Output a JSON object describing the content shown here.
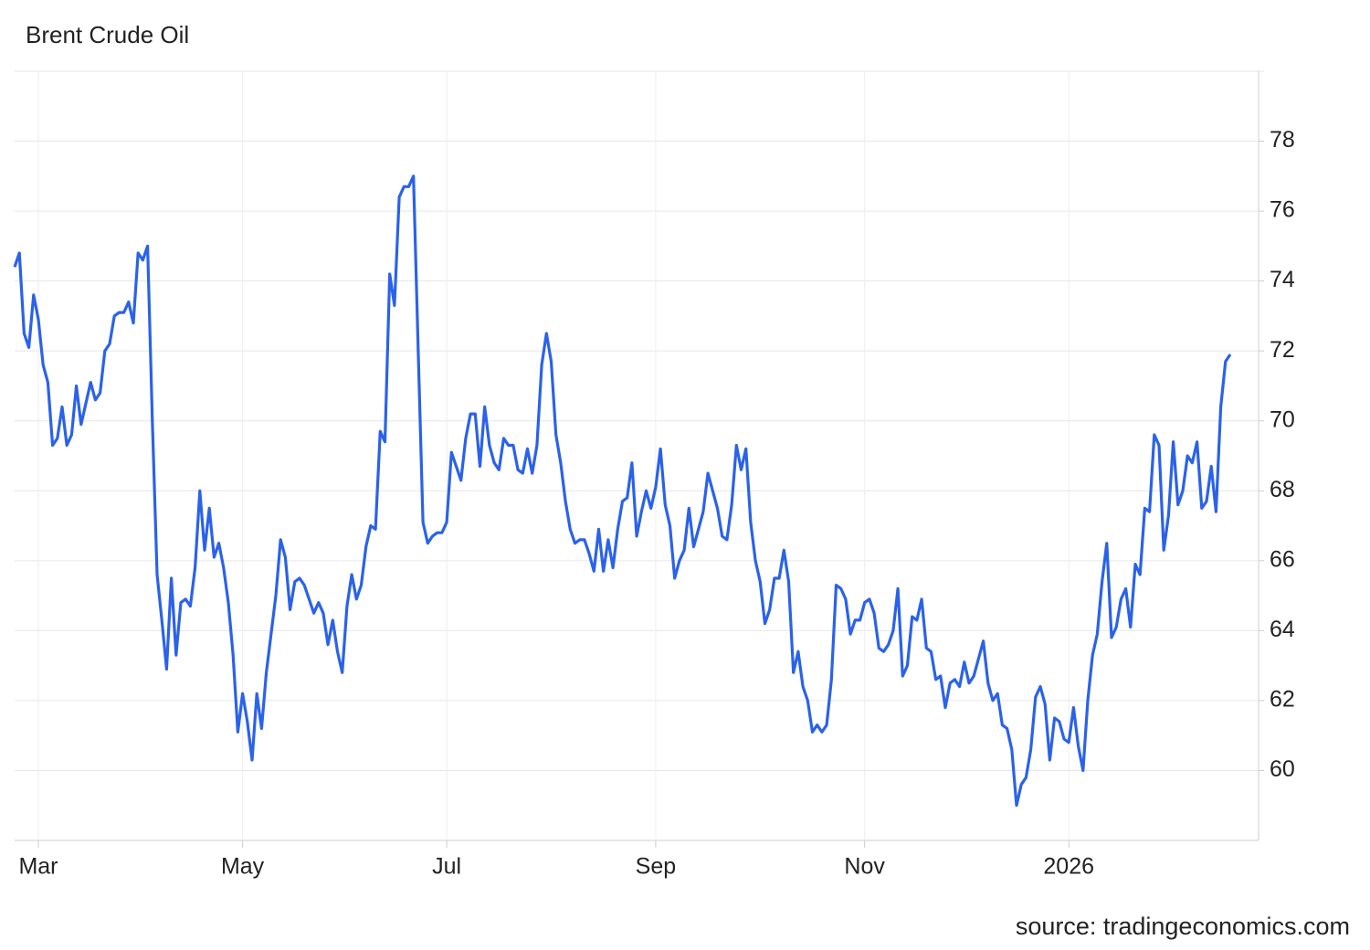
{
  "chart_data": {
    "type": "line",
    "title": "Brent Crude Oil",
    "source": "source: tradingeconomics.com",
    "categories": [
      null,
      null,
      null,
      null,
      null,
      "Mar",
      null,
      null,
      null,
      null,
      null,
      null,
      null,
      null,
      null,
      null,
      null,
      null,
      null,
      null,
      null,
      null,
      null,
      null,
      null,
      null,
      null,
      null,
      null,
      null,
      null,
      null,
      null,
      null,
      null,
      null,
      null,
      null,
      null,
      null,
      null,
      null,
      null,
      null,
      null,
      null,
      null,
      null,
      "May",
      null,
      null,
      null,
      null,
      null,
      null,
      null,
      null,
      null,
      null,
      null,
      null,
      null,
      null,
      null,
      null,
      null,
      null,
      null,
      null,
      null,
      null,
      null,
      null,
      null,
      null,
      null,
      null,
      null,
      null,
      null,
      null,
      null,
      null,
      null,
      null,
      null,
      null,
      null,
      null,
      null,
      null,
      "Jul",
      null,
      null,
      null,
      null,
      null,
      null,
      null,
      null,
      null,
      null,
      null,
      null,
      null,
      null,
      null,
      null,
      null,
      null,
      null,
      null,
      null,
      null,
      null,
      null,
      null,
      null,
      null,
      null,
      null,
      null,
      null,
      null,
      null,
      null,
      null,
      null,
      null,
      null,
      null,
      null,
      null,
      null,
      null,
      "Sep",
      null,
      null,
      null,
      null,
      null,
      null,
      null,
      null,
      null,
      null,
      null,
      null,
      null,
      null,
      null,
      null,
      null,
      null,
      null,
      null,
      null,
      null,
      null,
      null,
      null,
      null,
      null,
      null,
      null,
      null,
      null,
      null,
      null,
      null,
      null,
      null,
      null,
      null,
      null,
      null,
      null,
      null,
      null,
      "Nov",
      null,
      null,
      null,
      null,
      null,
      null,
      null,
      null,
      null,
      null,
      null,
      null,
      null,
      null,
      null,
      null,
      null,
      null,
      null,
      null,
      null,
      null,
      null,
      null,
      null,
      null,
      null,
      null,
      null,
      null,
      null,
      null,
      null,
      null,
      null,
      null,
      null,
      null,
      null,
      null,
      null,
      null,
      "2026",
      null,
      null,
      null,
      null,
      null,
      null,
      null,
      null,
      null,
      null,
      null,
      null,
      null,
      null,
      null,
      null,
      null,
      null,
      null,
      null,
      null,
      null,
      null,
      null,
      null,
      null,
      null,
      null,
      null,
      null,
      null,
      null,
      null,
      null
    ],
    "series": [
      {
        "name": "Brent Crude Oil",
        "color": "#2b62ea",
        "values": [
          74.4,
          74.8,
          72.5,
          72.1,
          73.6,
          72.9,
          71.6,
          71.1,
          69.3,
          69.5,
          70.4,
          69.3,
          69.6,
          71.0,
          69.9,
          70.5,
          71.1,
          70.6,
          70.8,
          72.0,
          72.2,
          73.0,
          73.1,
          73.1,
          73.4,
          72.8,
          74.8,
          74.6,
          75.0,
          70.0,
          65.6,
          64.3,
          62.9,
          65.5,
          63.3,
          64.8,
          64.9,
          64.7,
          65.8,
          68.0,
          66.3,
          67.5,
          66.1,
          66.5,
          65.8,
          64.8,
          63.3,
          61.1,
          62.2,
          61.4,
          60.3,
          62.2,
          61.2,
          62.8,
          63.9,
          65.0,
          66.6,
          66.1,
          64.6,
          65.4,
          65.5,
          65.3,
          64.9,
          64.5,
          64.8,
          64.5,
          63.6,
          64.3,
          63.4,
          62.8,
          64.7,
          65.6,
          64.9,
          65.3,
          66.4,
          67.0,
          66.9,
          69.7,
          69.4,
          74.2,
          73.3,
          76.4,
          76.7,
          76.7,
          77.0,
          72.0,
          67.1,
          66.5,
          66.7,
          66.8,
          66.8,
          67.1,
          69.1,
          68.7,
          68.3,
          69.5,
          70.2,
          70.2,
          68.7,
          70.4,
          69.3,
          68.8,
          68.6,
          69.5,
          69.3,
          69.3,
          68.6,
          68.5,
          69.2,
          68.5,
          69.3,
          71.6,
          72.5,
          71.7,
          69.6,
          68.8,
          67.7,
          66.9,
          66.5,
          66.6,
          66.6,
          66.2,
          65.7,
          66.9,
          65.7,
          66.6,
          65.8,
          66.9,
          67.7,
          67.8,
          68.8,
          66.7,
          67.4,
          68.0,
          67.5,
          68.1,
          69.2,
          67.6,
          67.0,
          65.5,
          66.0,
          66.3,
          67.5,
          66.4,
          66.9,
          67.4,
          68.5,
          68.0,
          67.5,
          66.7,
          66.6,
          67.6,
          69.3,
          68.6,
          69.2,
          67.1,
          66.0,
          65.4,
          64.2,
          64.6,
          65.5,
          65.5,
          66.3,
          65.4,
          62.8,
          63.4,
          62.4,
          62.0,
          61.1,
          61.3,
          61.1,
          61.3,
          62.6,
          65.3,
          65.2,
          64.9,
          63.9,
          64.3,
          64.3,
          64.8,
          64.9,
          64.5,
          63.5,
          63.4,
          63.6,
          64.0,
          65.2,
          62.7,
          63.0,
          64.4,
          64.3,
          64.9,
          63.5,
          63.4,
          62.6,
          62.7,
          61.8,
          62.5,
          62.6,
          62.4,
          63.1,
          62.5,
          62.7,
          63.2,
          63.7,
          62.5,
          62.0,
          62.2,
          61.3,
          61.2,
          60.6,
          59.0,
          59.6,
          59.8,
          60.6,
          62.1,
          62.4,
          61.9,
          60.3,
          61.5,
          61.4,
          60.9,
          60.8,
          61.8,
          60.7,
          60.0,
          62.0,
          63.3,
          63.9,
          65.4,
          66.5,
          63.8,
          64.1,
          64.9,
          65.2,
          64.1,
          65.9,
          65.6,
          67.5,
          67.4,
          69.6,
          69.3,
          66.3,
          67.3,
          69.4,
          67.6,
          68.0,
          69.0,
          68.8,
          69.4,
          67.5,
          67.7,
          68.7,
          67.4,
          70.4,
          71.7,
          71.9
        ]
      }
    ],
    "ylim": [
      58,
      80
    ],
    "yticks": [
      60,
      62,
      64,
      66,
      68,
      70,
      72,
      74,
      76,
      78
    ],
    "grid": true,
    "y_axis_side": "right"
  }
}
